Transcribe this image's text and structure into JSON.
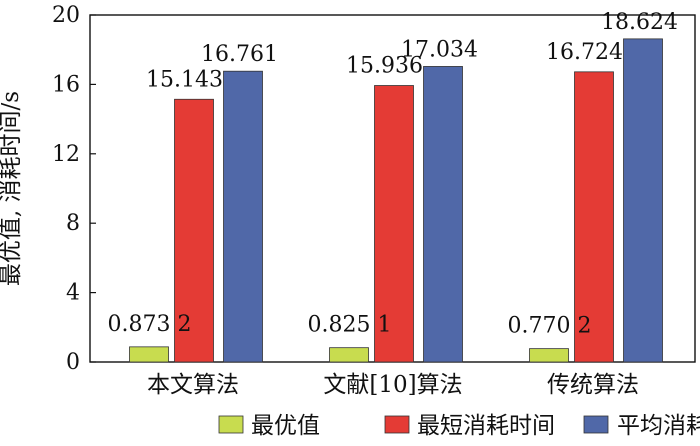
{
  "chart_data": {
    "type": "bar",
    "categories": [
      "本文算法",
      "文献[10]算法",
      "传统算法"
    ],
    "ylabel": "最优值, 消耗时间/s",
    "ylim": [
      0,
      20
    ],
    "yticks": [
      "0",
      "4",
      "8",
      "12",
      "16",
      "20"
    ],
    "grid": false,
    "legend_position": "bottom",
    "series": [
      {
        "name": "最优值",
        "color": "#c8dc4f",
        "values": [
          0.8732,
          0.8251,
          0.7702
        ],
        "labels": [
          "0.873 2",
          "0.825 1",
          "0.770 2"
        ]
      },
      {
        "name": "最短消耗时间",
        "color": "#e43b35",
        "values": [
          15.143,
          15.936,
          16.724
        ],
        "labels": [
          "15.143",
          "15.936",
          "16.724"
        ]
      },
      {
        "name": "平均消耗时间",
        "color": "#5068a8",
        "values": [
          16.761,
          17.034,
          18.624
        ],
        "labels": [
          "16.761",
          "17.034",
          "18.624"
        ]
      }
    ]
  }
}
